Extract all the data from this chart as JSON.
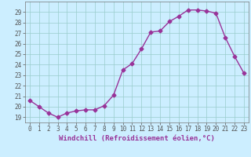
{
  "x": [
    0,
    1,
    2,
    3,
    4,
    5,
    6,
    7,
    8,
    9,
    10,
    11,
    12,
    13,
    14,
    15,
    16,
    17,
    18,
    19,
    20,
    21,
    22,
    23
  ],
  "y": [
    20.6,
    20.0,
    19.4,
    19.0,
    19.4,
    19.6,
    19.7,
    19.7,
    20.1,
    21.1,
    23.5,
    24.1,
    25.5,
    27.1,
    27.2,
    28.1,
    28.6,
    29.2,
    29.2,
    29.1,
    28.9,
    26.6,
    24.8,
    23.2
  ],
  "line_color": "#993399",
  "marker": "D",
  "markersize": 2.5,
  "linewidth": 1.0,
  "background_color": "#cceeff",
  "grid_color": "#99cccc",
  "xlabel": "Windchill (Refroidissement éolien,°C)",
  "ylabel": "",
  "xlim": [
    -0.5,
    23.5
  ],
  "ylim": [
    18.5,
    30.0
  ],
  "yticks": [
    19,
    20,
    21,
    22,
    23,
    24,
    25,
    26,
    27,
    28,
    29
  ],
  "xticks": [
    0,
    1,
    2,
    3,
    4,
    5,
    6,
    7,
    8,
    9,
    10,
    11,
    12,
    13,
    14,
    15,
    16,
    17,
    18,
    19,
    20,
    21,
    22,
    23
  ],
  "tick_fontsize": 5.5,
  "xlabel_fontsize": 6.5
}
